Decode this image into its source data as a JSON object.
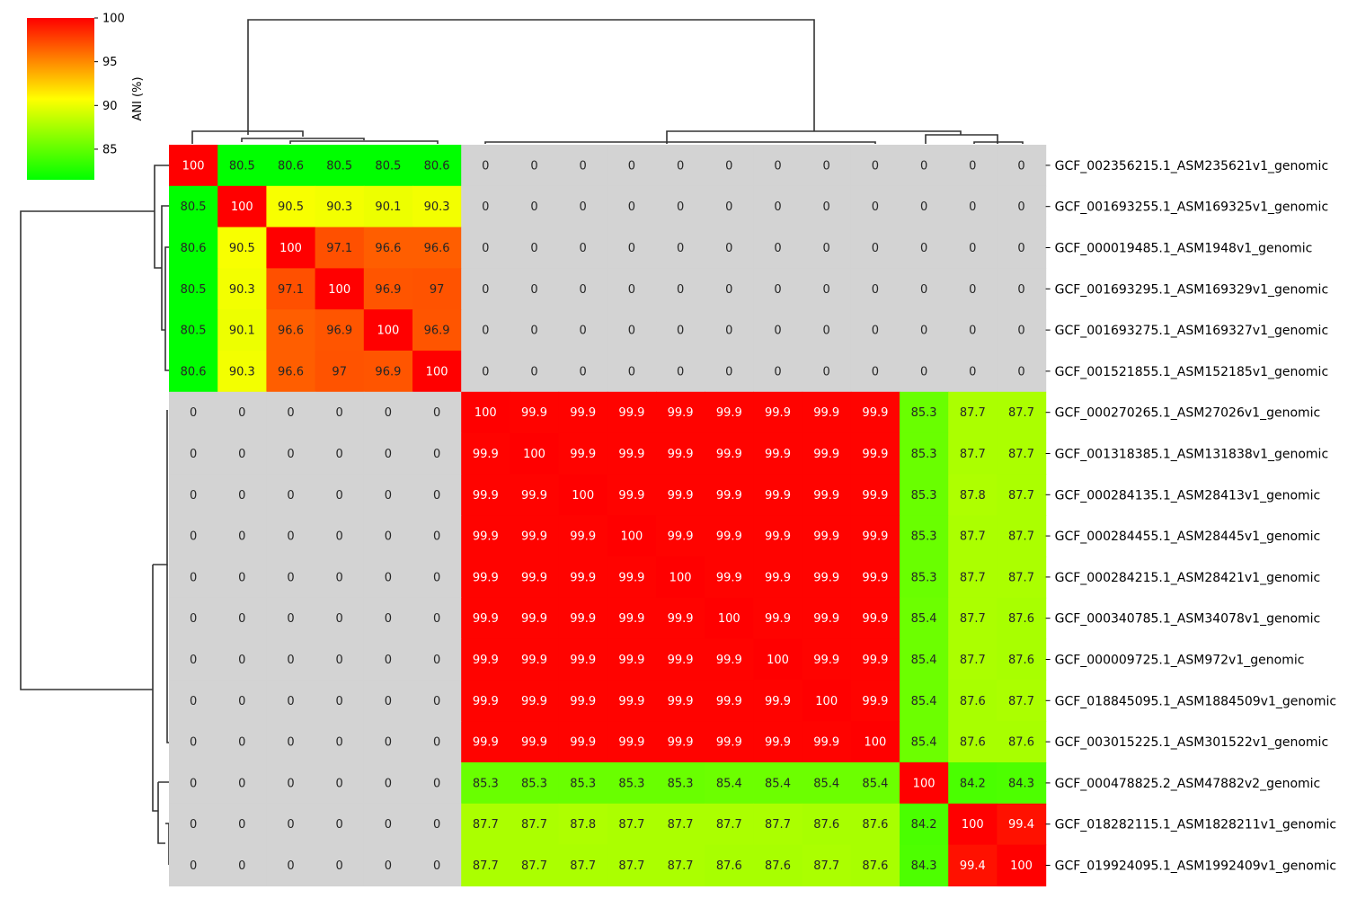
{
  "chart_data": {
    "type": "heatmap",
    "title": "",
    "xlabel": "",
    "ylabel": "",
    "row_labels": [
      "GCF_002356215.1_ASM235621v1_genomic",
      "GCF_001693255.1_ASM169325v1_genomic",
      "GCF_000019485.1_ASM1948v1_genomic",
      "GCF_001693295.1_ASM169329v1_genomic",
      "GCF_001693275.1_ASM169327v1_genomic",
      "GCF_001521855.1_ASM152185v1_genomic",
      "GCF_000270265.1_ASM27026v1_genomic",
      "GCF_001318385.1_ASM131838v1_genomic",
      "GCF_000284135.1_ASM28413v1_genomic",
      "GCF_000284455.1_ASM28445v1_genomic",
      "GCF_000284215.1_ASM28421v1_genomic",
      "GCF_000340785.1_ASM34078v1_genomic",
      "GCF_000009725.1_ASM972v1_genomic",
      "GCF_018845095.1_ASM1884509v1_genomic",
      "GCF_003015225.1_ASM301522v1_genomic",
      "GCF_000478825.2_ASM47882v2_genomic",
      "GCF_018282115.1_ASM1828211v1_genomic",
      "GCF_019924095.1_ASM1992409v1_genomic"
    ],
    "values": [
      [
        100,
        80.5,
        80.6,
        80.5,
        80.5,
        80.6,
        0,
        0,
        0,
        0,
        0,
        0,
        0,
        0,
        0,
        0,
        0,
        0
      ],
      [
        80.5,
        100,
        90.5,
        90.3,
        90.1,
        90.3,
        0,
        0,
        0,
        0,
        0,
        0,
        0,
        0,
        0,
        0,
        0,
        0
      ],
      [
        80.6,
        90.5,
        100,
        97.1,
        96.6,
        96.6,
        0,
        0,
        0,
        0,
        0,
        0,
        0,
        0,
        0,
        0,
        0,
        0
      ],
      [
        80.5,
        90.3,
        97.1,
        100,
        96.9,
        97,
        0,
        0,
        0,
        0,
        0,
        0,
        0,
        0,
        0,
        0,
        0,
        0
      ],
      [
        80.5,
        90.1,
        96.6,
        96.9,
        100,
        96.9,
        0,
        0,
        0,
        0,
        0,
        0,
        0,
        0,
        0,
        0,
        0,
        0
      ],
      [
        80.6,
        90.3,
        96.6,
        97,
        96.9,
        100,
        0,
        0,
        0,
        0,
        0,
        0,
        0,
        0,
        0,
        0,
        0,
        0
      ],
      [
        0,
        0,
        0,
        0,
        0,
        0,
        100,
        99.9,
        99.9,
        99.9,
        99.9,
        99.9,
        99.9,
        99.9,
        99.9,
        85.3,
        87.7,
        87.7
      ],
      [
        0,
        0,
        0,
        0,
        0,
        0,
        99.9,
        100,
        99.9,
        99.9,
        99.9,
        99.9,
        99.9,
        99.9,
        99.9,
        85.3,
        87.7,
        87.7
      ],
      [
        0,
        0,
        0,
        0,
        0,
        0,
        99.9,
        99.9,
        100,
        99.9,
        99.9,
        99.9,
        99.9,
        99.9,
        99.9,
        85.3,
        87.8,
        87.7
      ],
      [
        0,
        0,
        0,
        0,
        0,
        0,
        99.9,
        99.9,
        99.9,
        100,
        99.9,
        99.9,
        99.9,
        99.9,
        99.9,
        85.3,
        87.7,
        87.7
      ],
      [
        0,
        0,
        0,
        0,
        0,
        0,
        99.9,
        99.9,
        99.9,
        99.9,
        100,
        99.9,
        99.9,
        99.9,
        99.9,
        85.3,
        87.7,
        87.7
      ],
      [
        0,
        0,
        0,
        0,
        0,
        0,
        99.9,
        99.9,
        99.9,
        99.9,
        99.9,
        100,
        99.9,
        99.9,
        99.9,
        85.4,
        87.7,
        87.6
      ],
      [
        0,
        0,
        0,
        0,
        0,
        0,
        99.9,
        99.9,
        99.9,
        99.9,
        99.9,
        99.9,
        100,
        99.9,
        99.9,
        85.4,
        87.7,
        87.6
      ],
      [
        0,
        0,
        0,
        0,
        0,
        0,
        99.9,
        99.9,
        99.9,
        99.9,
        99.9,
        99.9,
        99.9,
        100,
        99.9,
        85.4,
        87.6,
        87.7
      ],
      [
        0,
        0,
        0,
        0,
        0,
        0,
        99.9,
        99.9,
        99.9,
        99.9,
        99.9,
        99.9,
        99.9,
        99.9,
        100,
        85.4,
        87.6,
        87.6
      ],
      [
        0,
        0,
        0,
        0,
        0,
        0,
        85.3,
        85.3,
        85.3,
        85.3,
        85.3,
        85.4,
        85.4,
        85.4,
        85.4,
        100,
        84.2,
        84.3
      ],
      [
        0,
        0,
        0,
        0,
        0,
        0,
        87.7,
        87.7,
        87.8,
        87.7,
        87.7,
        87.7,
        87.7,
        87.6,
        87.6,
        84.2,
        100,
        99.4
      ],
      [
        0,
        0,
        0,
        0,
        0,
        0,
        87.7,
        87.7,
        87.7,
        87.7,
        87.7,
        87.6,
        87.6,
        87.7,
        87.6,
        84.3,
        99.4,
        100
      ]
    ],
    "missing_value": 0,
    "colorbar": {
      "label": "ANI (%)",
      "range": [
        81.5,
        100
      ],
      "ticks": [
        85,
        90,
        95,
        100
      ],
      "colors": [
        "#00ff00",
        "#ffff00",
        "#ff0000"
      ]
    },
    "missing_color": "#d3d3d3",
    "grid": false,
    "legend": "colorbar top-left",
    "dendrograms": [
      "top",
      "left"
    ]
  }
}
